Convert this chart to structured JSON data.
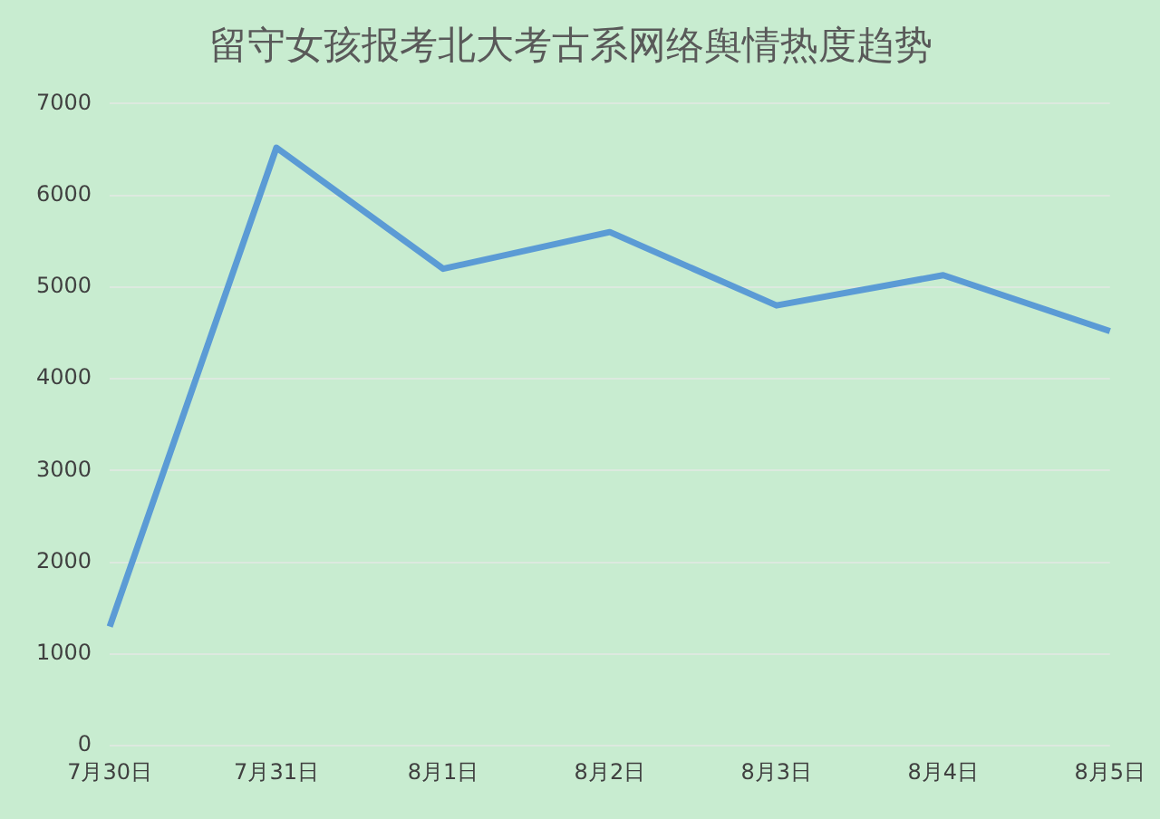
{
  "chart_data": {
    "type": "line",
    "title": "留守女孩报考北大考古系网络舆情热度趋势",
    "categories": [
      "7月30日",
      "7月31日",
      "8月1日",
      "8月2日",
      "8月3日",
      "8月4日",
      "8月5日"
    ],
    "series": [
      {
        "color": "#5b9bd5",
        "values": [
          1300,
          6520,
          5200,
          5600,
          4800,
          5130,
          4520
        ]
      }
    ],
    "ylim": [
      0,
      7000
    ],
    "yticks": [
      0,
      1000,
      2000,
      3000,
      4000,
      5000,
      6000,
      7000
    ],
    "grid": "y",
    "legend": false,
    "marker": "none",
    "line_style": "solid"
  }
}
